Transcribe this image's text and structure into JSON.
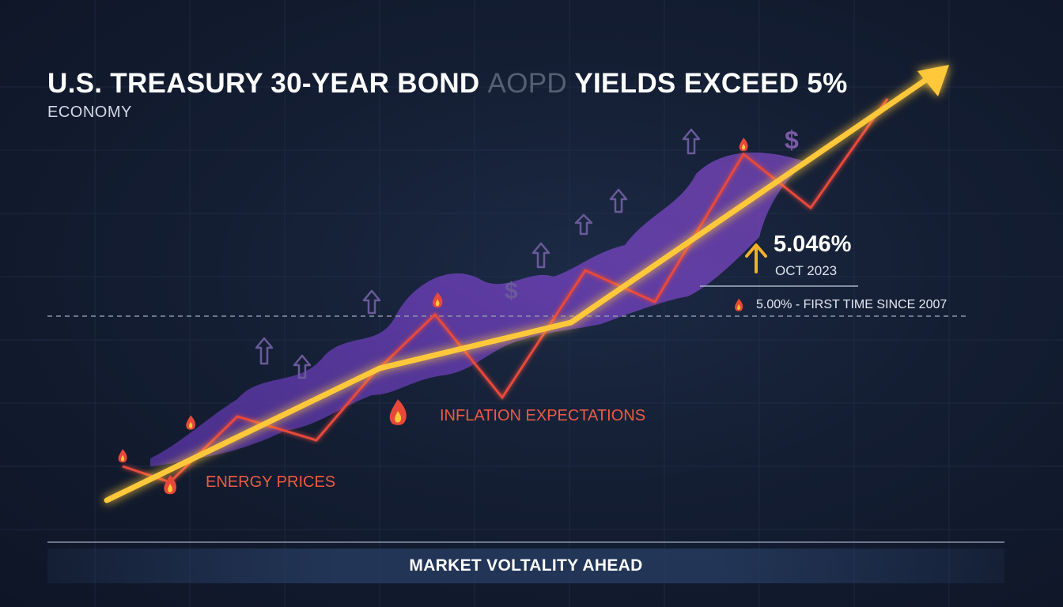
{
  "headline": {
    "title_main": "U.S. TREASURY 30-YEAR BOND",
    "title_faded": "AOPD",
    "title_end": "YIELDS EXCEED 5%",
    "category": "ECONOMY"
  },
  "callout": {
    "value": "5.046%",
    "date": "OCT 2023"
  },
  "threshold": {
    "label": "5.00% - FIRST TIME SINCE 2007"
  },
  "annotations": {
    "inflation": "INFLATION EXPECTATIONS",
    "energy": "ENERGY PRICES"
  },
  "banner": {
    "text": "MARKET VOLTALITY AHEAD"
  },
  "icons": [
    "flame-icon",
    "up-arrow-icon",
    "dollar-icon"
  ],
  "colors": {
    "trend": "#ffc83a",
    "volatility": "#e8483a",
    "band": "#6a3fb0",
    "accent_arrow": "#f5b028",
    "background": "#141e33"
  }
}
